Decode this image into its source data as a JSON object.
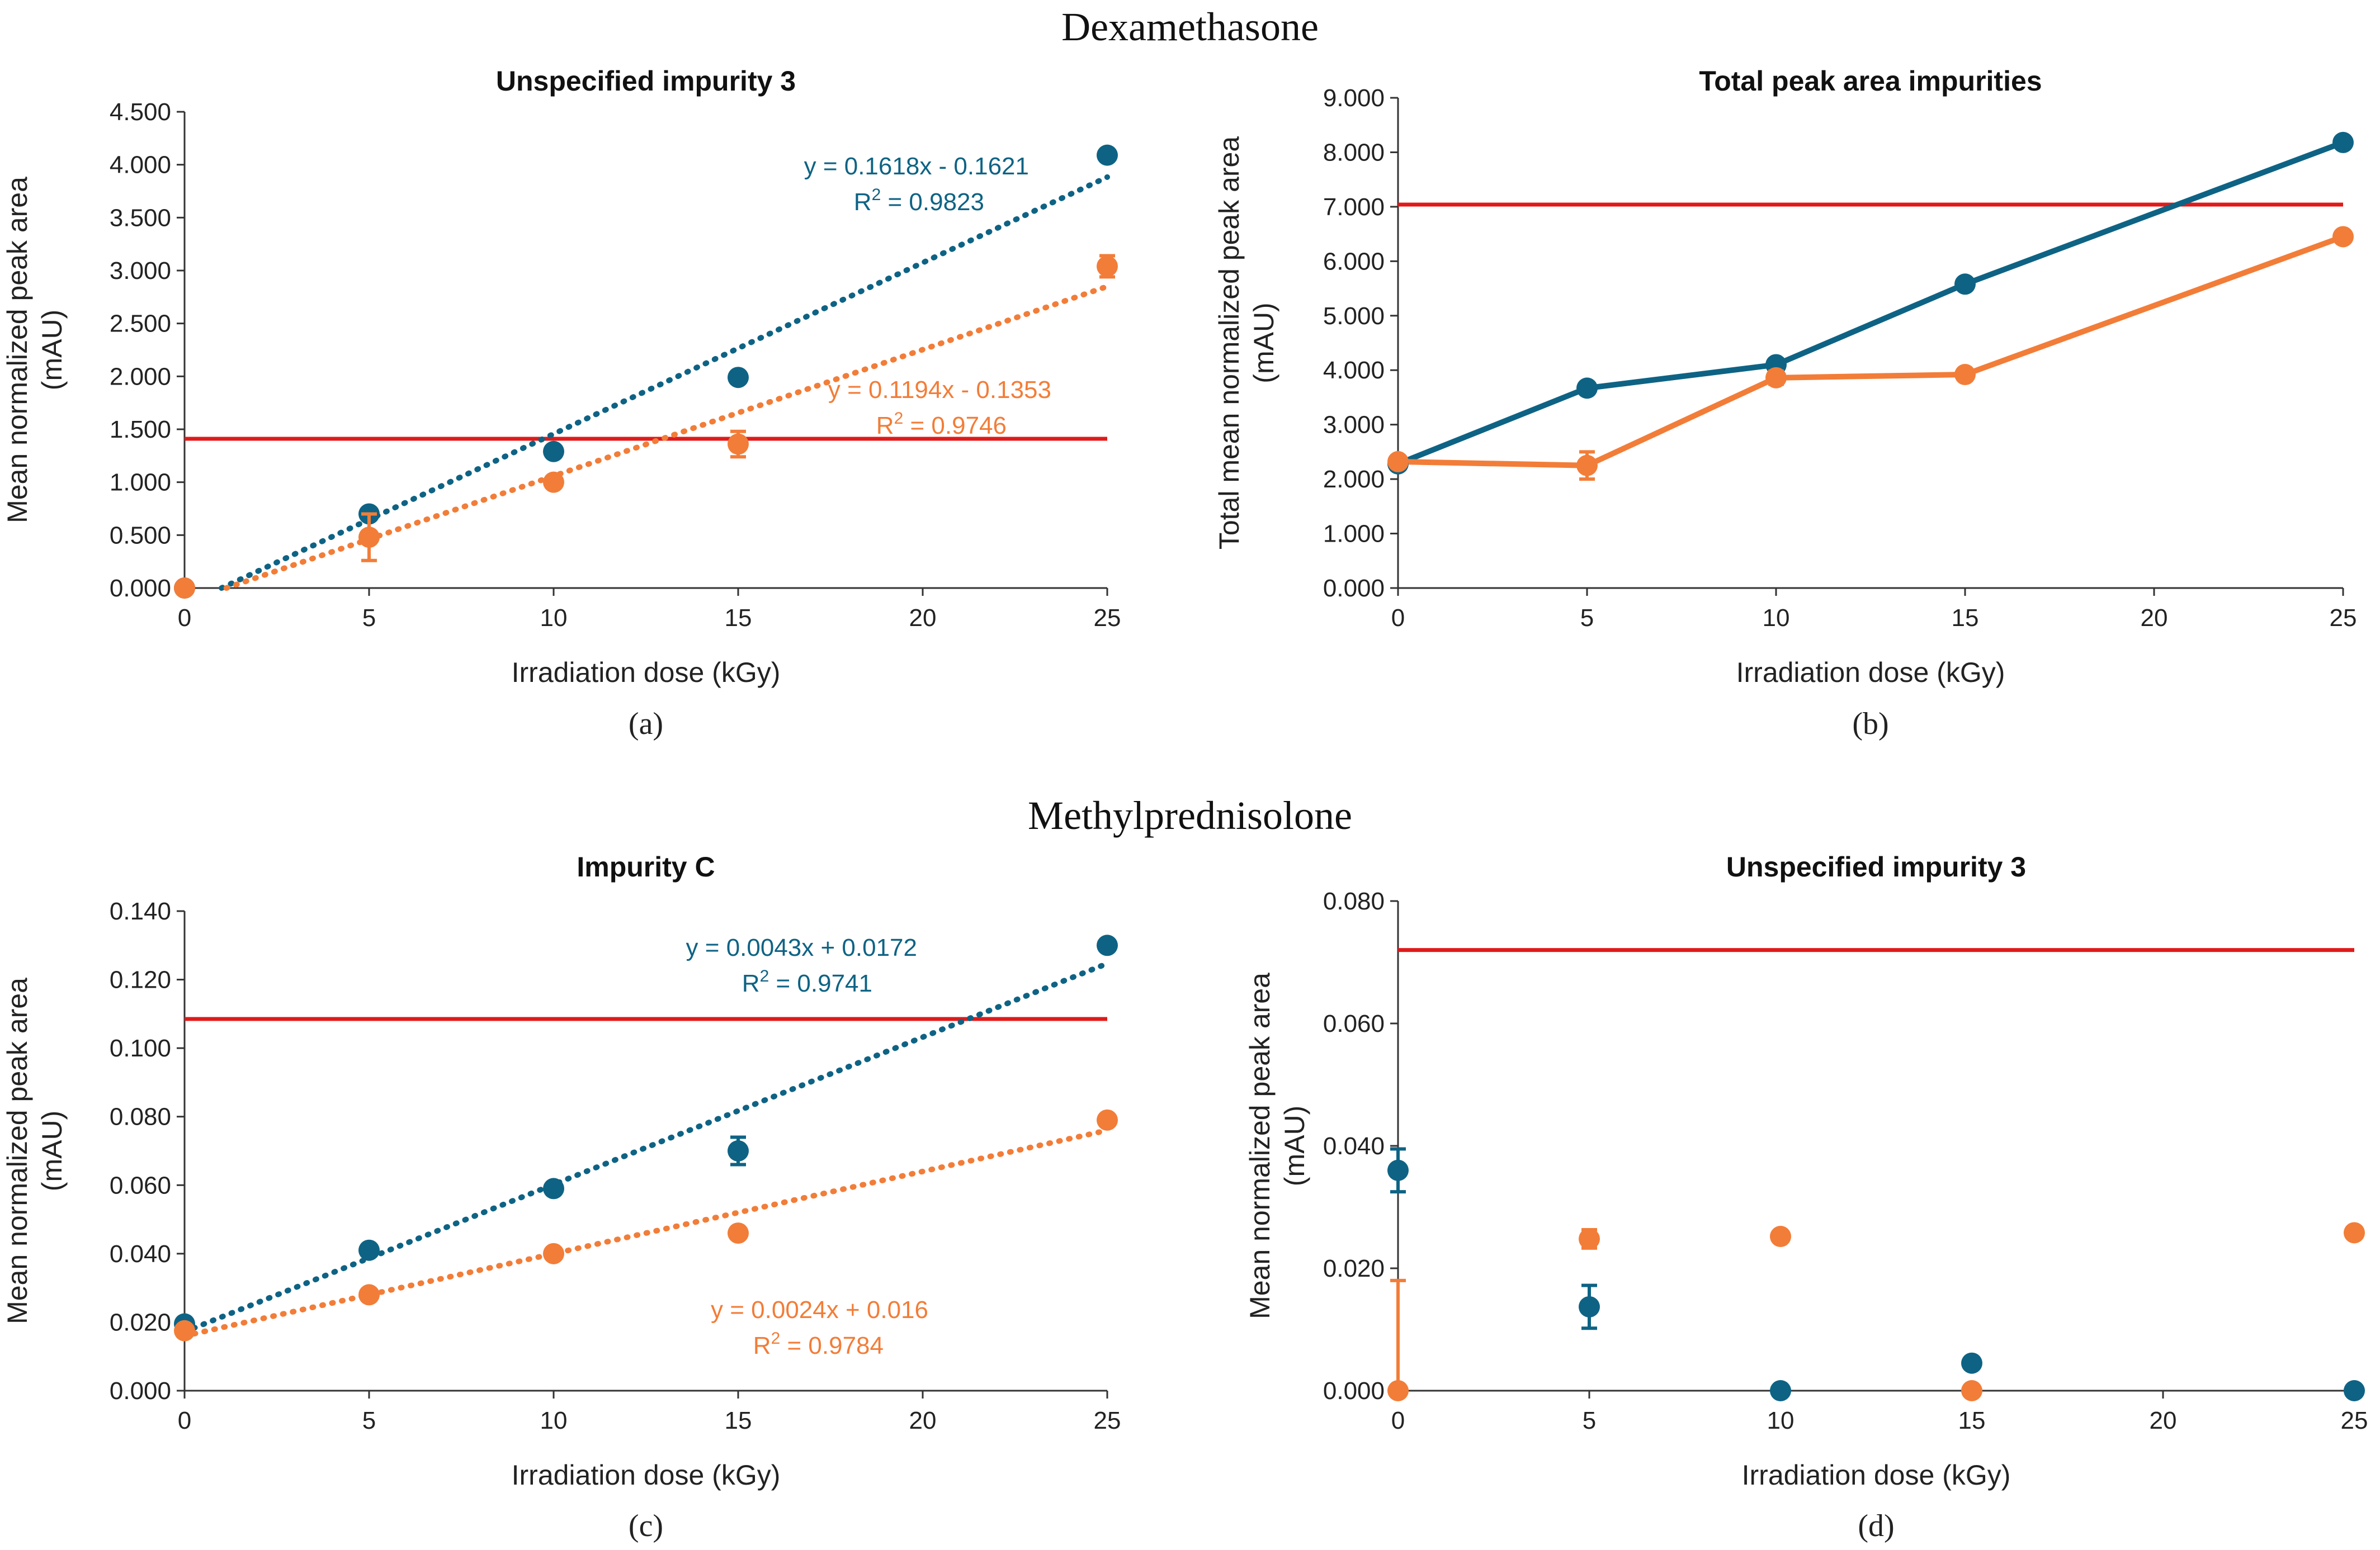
{
  "sections": [
    "Dexamethasone",
    "Methylprednisolone"
  ],
  "colors": {
    "blue": "#0e6384",
    "orange": "#f27d38",
    "limit": "#e01a1a"
  },
  "chart_data": [
    {
      "id": "a",
      "type": "scatter",
      "title": "Unspecified impurity 3",
      "caption": "(a)",
      "xlabel": "Irradiation dose (kGy)",
      "ylabel": [
        "Mean normalized peak area",
        "(mAU)"
      ],
      "xlim": [
        0,
        25
      ],
      "ylim": [
        0,
        4.5
      ],
      "xticks": [
        0,
        5,
        10,
        15,
        20,
        25
      ],
      "yticks": [
        "0.000",
        "0.500",
        "1.000",
        "1.500",
        "2.000",
        "2.500",
        "3.000",
        "3.500",
        "4.000",
        "4.500"
      ],
      "yticks_values": [
        0,
        0.5,
        1.0,
        1.5,
        2.0,
        2.5,
        3.0,
        3.5,
        4.0,
        4.5
      ],
      "series": [
        {
          "name": "blue",
          "color": "#0e6384",
          "x": [
            0,
            5,
            10,
            15,
            25
          ],
          "y": [
            0,
            0.7,
            1.29,
            1.99,
            4.09
          ],
          "err": [
            0,
            0,
            0,
            0,
            0
          ],
          "trend": {
            "slope": 0.1618,
            "intercept": -0.1621,
            "equation": "y = 0.1618x - 0.1621",
            "r2": "0.9823"
          }
        },
        {
          "name": "orange",
          "color": "#f27d38",
          "x": [
            0,
            5,
            10,
            15,
            25
          ],
          "y": [
            0,
            0.48,
            1.0,
            1.36,
            3.04
          ],
          "err": [
            0,
            0.22,
            0,
            0.12,
            0.1
          ],
          "trend": {
            "slope": 0.1194,
            "intercept": -0.1353,
            "equation": "y = 0.1194x - 0.1353",
            "r2": "0.9746"
          }
        }
      ],
      "limit": 1.41
    },
    {
      "id": "b",
      "type": "line",
      "title": "Total peak area impurities",
      "caption": "(b)",
      "xlabel": "Irradiation dose (kGy)",
      "ylabel": [
        "Total mean normalized peak area",
        "(mAU)"
      ],
      "xlim": [
        0,
        25
      ],
      "ylim": [
        0,
        9
      ],
      "xticks": [
        0,
        5,
        10,
        15,
        20,
        25
      ],
      "yticks": [
        "0.000",
        "1.000",
        "2.000",
        "3.000",
        "4.000",
        "5.000",
        "6.000",
        "7.000",
        "8.000",
        "9.000"
      ],
      "yticks_values": [
        0,
        1,
        2,
        3,
        4,
        5,
        6,
        7,
        8,
        9
      ],
      "series": [
        {
          "name": "blue",
          "color": "#0e6384",
          "x": [
            0,
            5,
            10,
            15,
            25
          ],
          "y": [
            2.28,
            3.67,
            4.1,
            5.58,
            8.18
          ],
          "err": [
            0,
            0,
            0,
            0,
            0
          ]
        },
        {
          "name": "orange",
          "color": "#f27d38",
          "x": [
            0,
            5,
            10,
            15,
            25
          ],
          "y": [
            2.32,
            2.25,
            3.86,
            3.92,
            6.45
          ],
          "err": [
            0,
            0.25,
            0.12,
            0,
            0.06
          ]
        }
      ],
      "limit": 7.04
    },
    {
      "id": "c",
      "type": "scatter",
      "title": "Impurity C",
      "caption": "(c)",
      "xlabel": "Irradiation dose (kGy)",
      "ylabel": [
        "Mean normalized peak area",
        "(mAU)"
      ],
      "xlim": [
        0,
        25
      ],
      "ylim": [
        0,
        0.14
      ],
      "xticks": [
        0,
        5,
        10,
        15,
        20,
        25
      ],
      "yticks": [
        "0.000",
        "0.020",
        "0.040",
        "0.060",
        "0.080",
        "0.100",
        "0.120",
        "0.140"
      ],
      "yticks_values": [
        0,
        0.02,
        0.04,
        0.06,
        0.08,
        0.1,
        0.12,
        0.14
      ],
      "series": [
        {
          "name": "blue",
          "color": "#0e6384",
          "x": [
            0,
            5,
            10,
            15,
            25
          ],
          "y": [
            0.0195,
            0.041,
            0.059,
            0.07,
            0.13
          ],
          "err": [
            0,
            0,
            0,
            0.004,
            0
          ],
          "trend": {
            "slope": 0.0043,
            "intercept": 0.0172,
            "equation": "y = 0.0043x + 0.0172",
            "r2": "0.9741"
          }
        },
        {
          "name": "orange",
          "color": "#f27d38",
          "x": [
            0,
            5,
            10,
            15,
            25
          ],
          "y": [
            0.0175,
            0.028,
            0.04,
            0.046,
            0.079
          ],
          "err": [
            0,
            0,
            0,
            0,
            0
          ],
          "trend": {
            "slope": 0.0024,
            "intercept": 0.016,
            "equation": "y = 0.0024x + 0.016",
            "r2": "0.9784"
          }
        }
      ],
      "limit": 0.1085
    },
    {
      "id": "d",
      "type": "scatter",
      "title": "Unspecified impurity 3",
      "caption": "(d)",
      "xlabel": "Irradiation dose (kGy)",
      "ylabel": [
        "Mean normalized peak area",
        "(mAU)"
      ],
      "xlim": [
        0,
        25
      ],
      "ylim": [
        0,
        0.08
      ],
      "xticks": [
        0,
        5,
        10,
        15,
        20,
        25
      ],
      "yticks": [
        "0.000",
        "0.020",
        "0.040",
        "0.060",
        "0.080"
      ],
      "yticks_values": [
        0,
        0.02,
        0.04,
        0.06,
        0.08
      ],
      "series": [
        {
          "name": "blue",
          "color": "#0e6384",
          "x": [
            0,
            5,
            10,
            15,
            25
          ],
          "y": [
            0.036,
            0.0137,
            0,
            0.0045,
            0
          ],
          "err": [
            0.0035,
            0.0035,
            0,
            0,
            0
          ]
        },
        {
          "name": "orange",
          "color": "#f27d38",
          "x": [
            0,
            5,
            10,
            15,
            25
          ],
          "y": [
            0,
            0.0248,
            0.0252,
            0,
            0.0258
          ],
          "err": [
            0.018,
            0.0015,
            0,
            0,
            0
          ]
        }
      ],
      "limit": 0.072
    }
  ]
}
